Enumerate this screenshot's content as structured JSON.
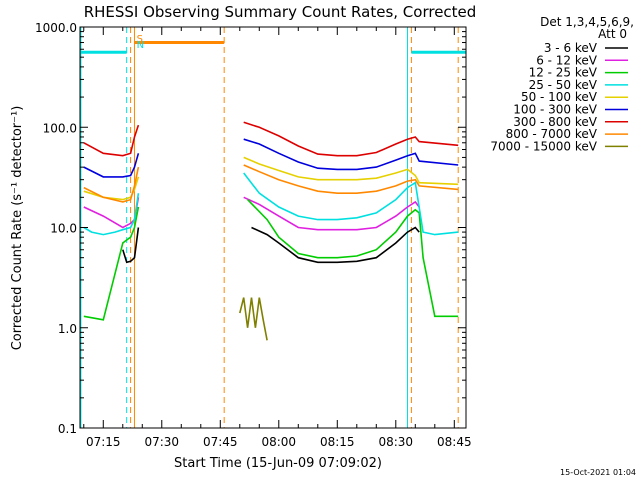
{
  "chart_data": {
    "type": "line",
    "title": "RHESSI Observing Summary Count Rates, Corrected",
    "xlabel": "Start Time (15-Jun-09 07:09:02)",
    "ylabel": "Corrected Count Rate (s⁻¹ detector⁻¹)",
    "xlim": [
      "07:09:02",
      "08:48:00"
    ],
    "ylim": [
      0.1,
      1000.0
    ],
    "yscale": "log",
    "x_ticks": [
      "07:15",
      "07:30",
      "07:45",
      "08:00",
      "08:15",
      "08:30",
      "08:45"
    ],
    "y_ticks": [
      "0.1",
      "1.0",
      "10.0",
      "100.0",
      "1000.0"
    ],
    "legend": {
      "header": [
        "Det 1,3,4,5,6,9,",
        "Att 0"
      ],
      "placement": "right"
    },
    "series": [
      {
        "name": "3 - 6 keV",
        "color": "#000000",
        "x": [
          "07:10",
          "07:15",
          "07:20",
          "07:21",
          "07:22",
          "07:23",
          "07:24",
          "07:50",
          "07:53",
          "07:57",
          "08:00",
          "08:05",
          "08:10",
          "08:15",
          "08:20",
          "08:25",
          "08:30",
          "08:33",
          "08:35",
          "08:36",
          "08:37"
        ],
        "y": [
          null,
          null,
          6,
          4.5,
          4.6,
          5,
          10,
          null,
          10,
          8.5,
          7,
          5,
          4.5,
          4.5,
          4.6,
          5,
          7,
          9,
          10,
          9,
          null
        ]
      },
      {
        "name": "6 - 12 keV",
        "color": "#e020e0",
        "x": [
          "07:10",
          "07:15",
          "07:20",
          "07:21",
          "07:22",
          "07:23",
          "07:24",
          "07:50",
          "07:51",
          "07:55",
          "08:00",
          "08:05",
          "08:10",
          "08:15",
          "08:20",
          "08:25",
          "08:30",
          "08:33",
          "08:35",
          "08:36",
          "08:37"
        ],
        "y": [
          16,
          13,
          10,
          10.5,
          11,
          12,
          20,
          null,
          20,
          17,
          13,
          10,
          9.5,
          9.5,
          9.5,
          10,
          13,
          16,
          18,
          16,
          null
        ]
      },
      {
        "name": "12 - 25 keV",
        "color": "#00cc00",
        "x": [
          "07:10",
          "07:15",
          "07:20",
          "07:21",
          "07:22",
          "07:23",
          "07:24",
          "07:50",
          "07:52",
          "07:57",
          "08:00",
          "08:05",
          "08:10",
          "08:15",
          "08:20",
          "08:25",
          "08:30",
          "08:33",
          "08:35",
          "08:36",
          "08:37",
          "08:40",
          "08:46"
        ],
        "y": [
          1.3,
          1.2,
          7,
          7.5,
          8,
          10,
          16,
          null,
          19,
          12,
          8,
          5.5,
          5,
          5,
          5.2,
          6,
          9,
          13,
          15,
          14,
          5,
          1.3,
          1.3
        ]
      },
      {
        "name": "25 - 50 keV",
        "color": "#00e0e0",
        "x": [
          "07:10",
          "07:12",
          "07:15",
          "07:18",
          "07:20",
          "07:22",
          "07:23",
          "07:24",
          "07:50",
          "07:51",
          "07:55",
          "08:00",
          "08:05",
          "08:10",
          "08:15",
          "08:20",
          "08:25",
          "08:30",
          "08:33",
          "08:35",
          "08:37",
          "08:40",
          "08:46"
        ],
        "y": [
          10,
          9,
          8.5,
          9,
          9.5,
          10,
          12,
          22,
          null,
          35,
          22,
          16,
          13,
          12,
          12,
          12.5,
          14,
          19,
          25,
          28,
          9,
          8.5,
          9
        ]
      },
      {
        "name": "50 - 100 keV",
        "color": "#e6d000",
        "x": [
          "07:10",
          "07:15",
          "07:20",
          "07:22",
          "07:23",
          "07:24",
          "07:50",
          "07:51",
          "07:55",
          "08:00",
          "08:05",
          "08:10",
          "08:15",
          "08:20",
          "08:25",
          "08:30",
          "08:33",
          "08:35",
          "08:36",
          "08:46"
        ],
        "y": [
          23,
          20,
          19,
          20,
          24,
          32,
          null,
          50,
          43,
          37,
          32,
          30,
          30,
          30,
          31,
          35,
          38,
          33,
          28,
          27
        ]
      },
      {
        "name": "100 - 300 keV",
        "color": "#0000dd",
        "x": [
          "07:10",
          "07:15",
          "07:20",
          "07:22",
          "07:23",
          "07:24",
          "07:50",
          "07:51",
          "07:55",
          "08:00",
          "08:05",
          "08:10",
          "08:15",
          "08:20",
          "08:25",
          "08:30",
          "08:33",
          "08:35",
          "08:36",
          "08:46"
        ],
        "y": [
          40,
          32,
          32,
          33,
          40,
          55,
          null,
          76,
          68,
          55,
          45,
          39,
          38,
          38,
          40,
          47,
          52,
          55,
          46,
          42
        ]
      },
      {
        "name": "300 - 800 keV",
        "color": "#dd0000",
        "x": [
          "07:10",
          "07:15",
          "07:20",
          "07:22",
          "07:23",
          "07:24",
          "07:50",
          "07:51",
          "07:55",
          "08:00",
          "08:05",
          "08:10",
          "08:15",
          "08:20",
          "08:25",
          "08:30",
          "08:33",
          "08:35",
          "08:36",
          "08:46"
        ],
        "y": [
          70,
          55,
          52,
          55,
          80,
          105,
          null,
          112,
          100,
          82,
          65,
          54,
          52,
          52,
          56,
          68,
          76,
          80,
          72,
          66
        ]
      },
      {
        "name": "800 - 7000 keV",
        "color": "#ff8800",
        "x": [
          "07:10",
          "07:15",
          "07:20",
          "07:22",
          "07:23",
          "07:24",
          "07:50",
          "07:51",
          "07:55",
          "08:00",
          "08:05",
          "08:10",
          "08:15",
          "08:20",
          "08:25",
          "08:30",
          "08:33",
          "08:35",
          "08:36",
          "08:46"
        ],
        "y": [
          25,
          20,
          18,
          19,
          26,
          40,
          null,
          42,
          36,
          30,
          26,
          23,
          22,
          22,
          23,
          26,
          29,
          30,
          26,
          24
        ]
      },
      {
        "name": "7000 - 15000 keV",
        "color": "#808000",
        "x": [
          "07:50",
          "07:51",
          "07:52",
          "07:53",
          "07:54",
          "07:55",
          "07:56",
          "07:57"
        ],
        "y": [
          1.4,
          2.0,
          1.0,
          2.0,
          1.0,
          2.0,
          1.2,
          0.75
        ]
      }
    ],
    "annotations": [
      {
        "text": "S",
        "x": "07:22",
        "color": "#ff8800"
      },
      {
        "text": "N",
        "x": "07:22",
        "color": "#00e0e0"
      }
    ],
    "markers": {
      "saa_lines": [
        "07:22",
        "07:23",
        "07:46",
        "08:34",
        "08:46"
      ],
      "night_lines": [
        "07:09",
        "07:21",
        "08:33"
      ],
      "saa_color": "#ff8800",
      "night_color": "#00e0e0",
      "saa_flag": {
        "start": "07:23",
        "end": "07:46",
        "y": 700
      },
      "night_flags": [
        {
          "start": "07:09",
          "end": "07:21",
          "y": 560
        },
        {
          "start": "08:34",
          "end": "08:48",
          "y": 560
        }
      ]
    }
  },
  "footer": {
    "timestamp": "15-Oct-2021 01:04"
  }
}
